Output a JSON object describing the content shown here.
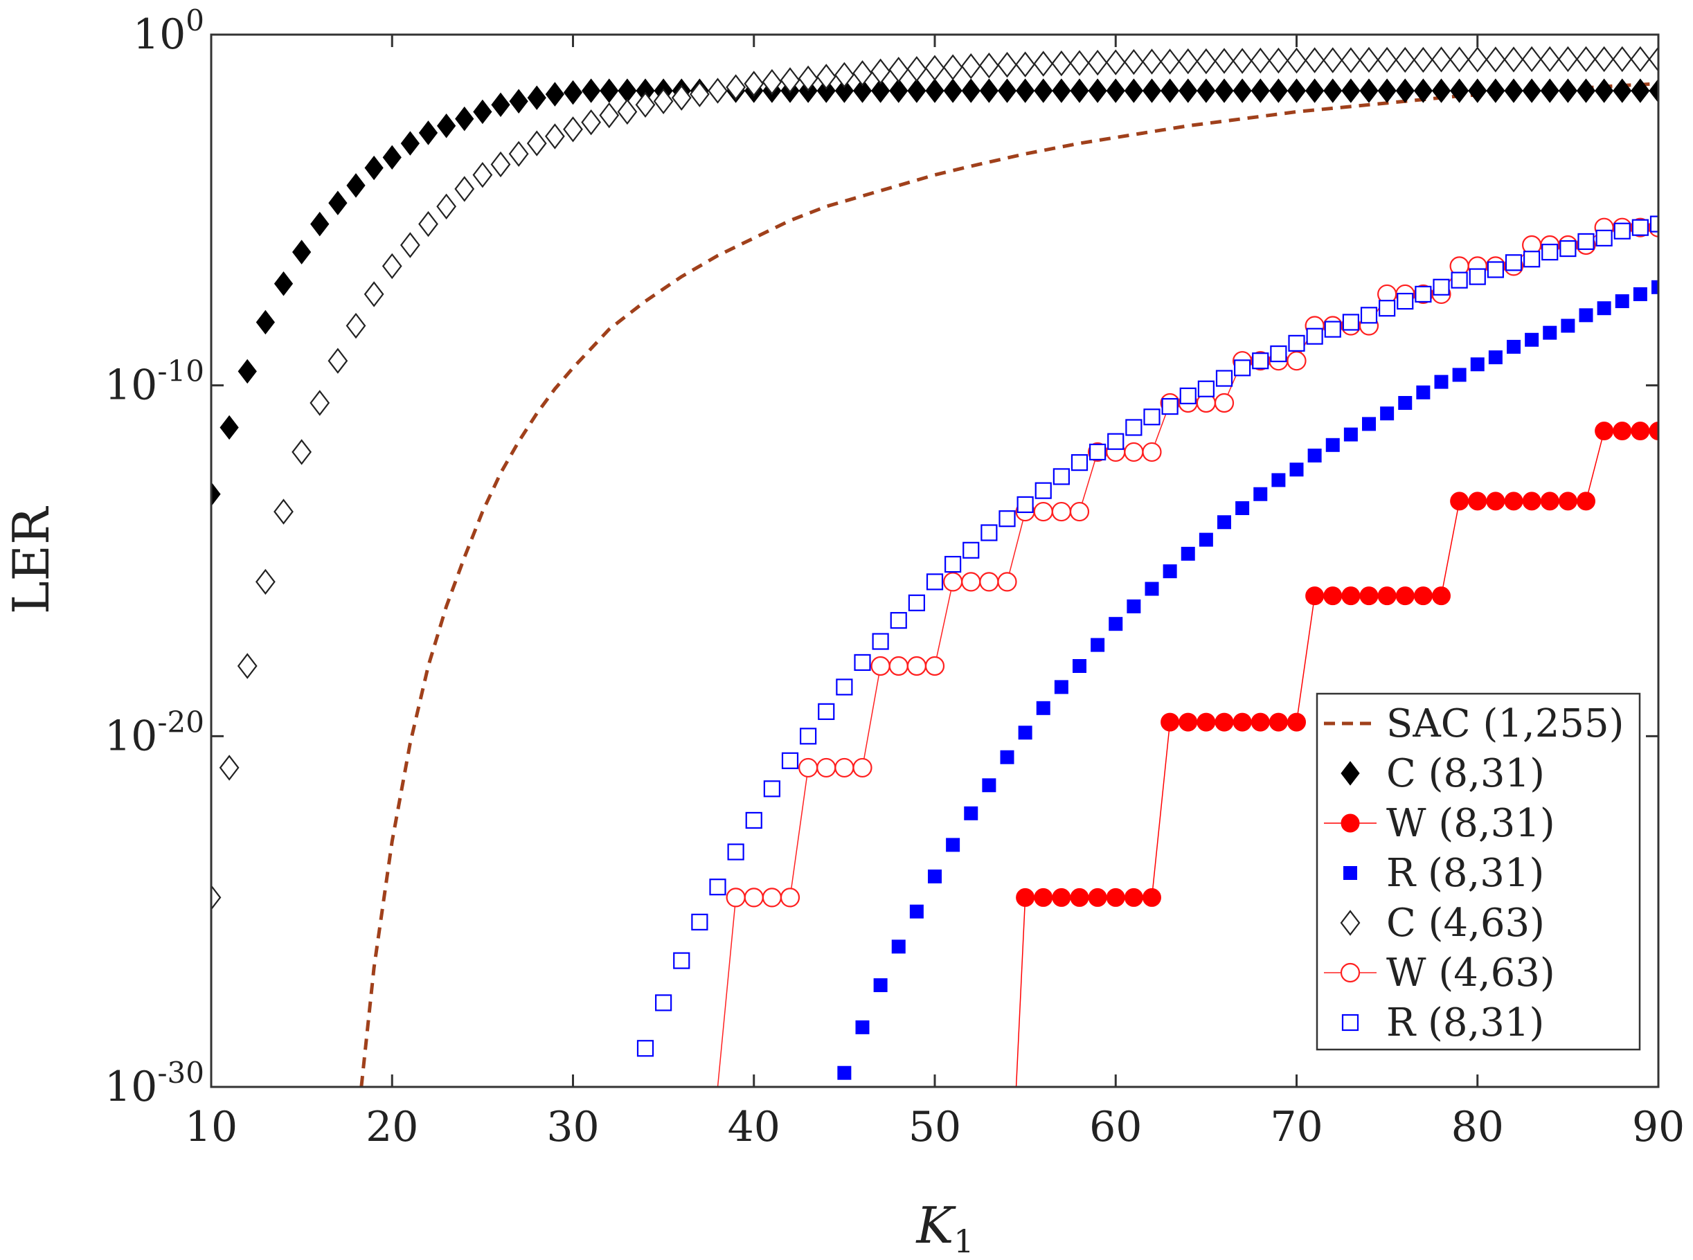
{
  "chart_data": {
    "type": "scatter",
    "title": "",
    "xlabel": "K",
    "xlabel_sub": "1",
    "ylabel": "LER",
    "xlim": [
      10,
      90
    ],
    "ylim_log10": [
      -30,
      0
    ],
    "xticks": [
      "10",
      "20",
      "30",
      "40",
      "50",
      "60",
      "70",
      "80",
      "90"
    ],
    "yticks": [
      {
        "base": "10",
        "exp": "0",
        "value": 0
      },
      {
        "base": "10",
        "exp": "-10",
        "value": -10
      },
      {
        "base": "10",
        "exp": "-20",
        "value": -20
      },
      {
        "base": "10",
        "exp": "-30",
        "value": -30
      }
    ],
    "legend_position": "lower-right",
    "series": [
      {
        "name": "SAC (1,255)",
        "style": "dashed-line",
        "color": "#a0401b",
        "x": [
          18.3,
          19,
          20,
          21,
          22,
          23,
          24,
          25,
          26,
          27,
          28,
          29,
          30,
          32,
          34,
          36,
          38,
          40,
          42,
          44,
          46,
          48,
          50,
          52,
          55,
          58,
          61,
          64,
          67,
          70,
          73,
          76,
          79,
          82,
          85,
          88,
          90
        ],
        "log10_y": [
          -30,
          -26.6,
          -23.0,
          -20.2,
          -18.0,
          -16.3,
          -14.9,
          -13.6,
          -12.5,
          -11.6,
          -10.8,
          -10.1,
          -9.5,
          -8.4,
          -7.6,
          -6.9,
          -6.3,
          -5.8,
          -5.3,
          -4.9,
          -4.6,
          -4.3,
          -4.0,
          -3.75,
          -3.4,
          -3.1,
          -2.85,
          -2.6,
          -2.4,
          -2.2,
          -2.05,
          -1.9,
          -1.75,
          -1.65,
          -1.55,
          -1.45,
          -1.4
        ]
      },
      {
        "name": "C (8,31)",
        "marker": "diamond-filled",
        "color": "#000000",
        "x": [
          10,
          11,
          12,
          13,
          14,
          15,
          16,
          17,
          18,
          19,
          20,
          21,
          22,
          23,
          24,
          25,
          26,
          27,
          28,
          29,
          30,
          31,
          32,
          33,
          34,
          35,
          36,
          37,
          38,
          39,
          40,
          41,
          42,
          43,
          44,
          45,
          46,
          47,
          48,
          49,
          50,
          51,
          52,
          53,
          54,
          55,
          56,
          57,
          58,
          59,
          60,
          61,
          62,
          63,
          64,
          65,
          66,
          67,
          68,
          69,
          70,
          71,
          72,
          73,
          74,
          75,
          76,
          77,
          78,
          79,
          80,
          81,
          82,
          83,
          84,
          85,
          86,
          87,
          88,
          89,
          90
        ],
        "log10_y": [
          -13.1,
          -11.2,
          -9.6,
          -8.2,
          -7.1,
          -6.2,
          -5.4,
          -4.8,
          -4.3,
          -3.8,
          -3.5,
          -3.1,
          -2.8,
          -2.6,
          -2.4,
          -2.2,
          -2.0,
          -1.9,
          -1.8,
          -1.7,
          -1.65,
          -1.6,
          -1.6,
          -1.6,
          -1.6,
          -1.6,
          -1.6,
          -1.6,
          -1.6,
          -1.6,
          -1.6,
          -1.6,
          -1.6,
          -1.6,
          -1.6,
          -1.6,
          -1.6,
          -1.6,
          -1.6,
          -1.6,
          -1.6,
          -1.6,
          -1.6,
          -1.6,
          -1.6,
          -1.6,
          -1.6,
          -1.6,
          -1.6,
          -1.6,
          -1.6,
          -1.6,
          -1.6,
          -1.6,
          -1.6,
          -1.6,
          -1.6,
          -1.6,
          -1.6,
          -1.6,
          -1.6,
          -1.6,
          -1.6,
          -1.6,
          -1.6,
          -1.6,
          -1.6,
          -1.6,
          -1.6,
          -1.6,
          -1.6,
          -1.6,
          -1.6,
          -1.6,
          -1.6,
          -1.6,
          -1.6,
          -1.6,
          -1.6,
          -1.6,
          -1.6
        ]
      },
      {
        "name": "W (8,31)",
        "marker": "circle-filled-line",
        "color": "#ff0000",
        "x": [
          54.5,
          55,
          56,
          57,
          58,
          59,
          60,
          61,
          62,
          63,
          64,
          65,
          66,
          67,
          68,
          69,
          70,
          71,
          72,
          73,
          74,
          75,
          76,
          77,
          78,
          79,
          80,
          81,
          82,
          83,
          84,
          85,
          86,
          87,
          88,
          89,
          90
        ],
        "log10_y": [
          -30,
          -24.6,
          -24.6,
          -24.6,
          -24.6,
          -24.6,
          -24.6,
          -24.6,
          -24.6,
          -19.6,
          -19.6,
          -19.6,
          -19.6,
          -19.6,
          -19.6,
          -19.6,
          -19.6,
          -16.0,
          -16.0,
          -16.0,
          -16.0,
          -16.0,
          -16.0,
          -16.0,
          -16.0,
          -13.3,
          -13.3,
          -13.3,
          -13.3,
          -13.3,
          -13.3,
          -13.3,
          -13.3,
          -11.3,
          -11.3,
          -11.3,
          -11.3
        ]
      },
      {
        "name": "R (8,31)",
        "marker": "square-filled",
        "color": "#0000ff",
        "x": [
          45,
          46,
          47,
          48,
          49,
          50,
          51,
          52,
          53,
          54,
          55,
          56,
          57,
          58,
          59,
          60,
          61,
          62,
          63,
          64,
          65,
          66,
          67,
          68,
          69,
          70,
          71,
          72,
          73,
          74,
          75,
          76,
          77,
          78,
          79,
          80,
          81,
          82,
          83,
          84,
          85,
          86,
          87,
          88,
          89,
          90
        ],
        "log10_y": [
          -29.6,
          -28.3,
          -27.1,
          -26.0,
          -25.0,
          -24.0,
          -23.1,
          -22.2,
          -21.4,
          -20.6,
          -19.9,
          -19.2,
          -18.6,
          -18.0,
          -17.4,
          -16.8,
          -16.3,
          -15.8,
          -15.3,
          -14.8,
          -14.4,
          -13.9,
          -13.5,
          -13.1,
          -12.7,
          -12.4,
          -12.0,
          -11.7,
          -11.4,
          -11.1,
          -10.8,
          -10.5,
          -10.2,
          -9.9,
          -9.7,
          -9.4,
          -9.2,
          -8.9,
          -8.7,
          -8.5,
          -8.3,
          -8.0,
          -7.8,
          -7.6,
          -7.4,
          -7.2
        ]
      },
      {
        "name": "C (4,63)",
        "marker": "diamond-open",
        "color": "#222222",
        "x": [
          10,
          11,
          12,
          13,
          14,
          15,
          16,
          17,
          18,
          19,
          20,
          21,
          22,
          23,
          24,
          25,
          26,
          27,
          28,
          29,
          30,
          31,
          32,
          33,
          34,
          35,
          36,
          37,
          38,
          39,
          40,
          41,
          42,
          43,
          44,
          45,
          46,
          47,
          48,
          49,
          50,
          51,
          52,
          53,
          54,
          55,
          56,
          57,
          58,
          59,
          60,
          61,
          62,
          63,
          64,
          65,
          66,
          67,
          68,
          69,
          70,
          71,
          72,
          73,
          74,
          75,
          76,
          77,
          78,
          79,
          80,
          81,
          82,
          83,
          84,
          85,
          86,
          87,
          88,
          89,
          90
        ],
        "log10_y": [
          -24.6,
          -20.9,
          -18.0,
          -15.6,
          -13.6,
          -11.9,
          -10.5,
          -9.3,
          -8.3,
          -7.4,
          -6.6,
          -6.0,
          -5.4,
          -4.9,
          -4.4,
          -4.0,
          -3.7,
          -3.4,
          -3.1,
          -2.9,
          -2.7,
          -2.5,
          -2.3,
          -2.2,
          -2.0,
          -1.9,
          -1.8,
          -1.7,
          -1.6,
          -1.5,
          -1.4,
          -1.35,
          -1.3,
          -1.25,
          -1.2,
          -1.15,
          -1.1,
          -1.05,
          -1.0,
          -0.98,
          -0.95,
          -0.93,
          -0.9,
          -0.88,
          -0.86,
          -0.85,
          -0.83,
          -0.82,
          -0.81,
          -0.8,
          -0.79,
          -0.78,
          -0.77,
          -0.77,
          -0.76,
          -0.76,
          -0.75,
          -0.75,
          -0.74,
          -0.74,
          -0.74,
          -0.73,
          -0.73,
          -0.73,
          -0.72,
          -0.72,
          -0.72,
          -0.72,
          -0.71,
          -0.71,
          -0.71,
          -0.71,
          -0.71,
          -0.7,
          -0.7,
          -0.7,
          -0.7,
          -0.7,
          -0.7,
          -0.7,
          -0.7
        ]
      },
      {
        "name": "W (4,63)",
        "marker": "circle-open-line",
        "color": "#ff2020",
        "x": [
          38,
          39,
          40,
          41,
          42,
          43,
          44,
          45,
          46,
          47,
          48,
          49,
          50,
          51,
          52,
          53,
          54,
          55,
          56,
          57,
          58,
          59,
          60,
          61,
          62,
          63,
          64,
          65,
          66,
          67,
          68,
          69,
          70,
          71,
          72,
          73,
          74,
          75,
          76,
          77,
          78,
          79,
          80,
          81,
          82,
          83,
          84,
          85,
          86,
          87,
          88,
          89,
          90
        ],
        "log10_y": [
          -30,
          -24.6,
          -24.6,
          -24.6,
          -24.6,
          -20.9,
          -20.9,
          -20.9,
          -20.9,
          -18.0,
          -18.0,
          -18.0,
          -18.0,
          -15.6,
          -15.6,
          -15.6,
          -15.6,
          -13.6,
          -13.6,
          -13.6,
          -13.6,
          -11.9,
          -11.9,
          -11.9,
          -11.9,
          -10.5,
          -10.5,
          -10.5,
          -10.5,
          -9.3,
          -9.3,
          -9.3,
          -9.3,
          -8.3,
          -8.3,
          -8.3,
          -8.3,
          -7.4,
          -7.4,
          -7.4,
          -7.4,
          -6.6,
          -6.6,
          -6.6,
          -6.6,
          -6.0,
          -6.0,
          -6.0,
          -6.0,
          -5.5,
          -5.5,
          -5.5,
          -5.5
        ]
      },
      {
        "name": "R (8,31)",
        "marker": "square-open",
        "color": "#0000ff",
        "x": [
          34,
          35,
          36,
          37,
          38,
          39,
          40,
          41,
          42,
          43,
          44,
          45,
          46,
          47,
          48,
          49,
          50,
          51,
          52,
          53,
          54,
          55,
          56,
          57,
          58,
          59,
          60,
          61,
          62,
          63,
          64,
          65,
          66,
          67,
          68,
          69,
          70,
          71,
          72,
          73,
          74,
          75,
          76,
          77,
          78,
          79,
          80,
          81,
          82,
          83,
          84,
          85,
          86,
          87,
          88,
          89,
          90
        ],
        "log10_y": [
          -28.9,
          -27.6,
          -26.4,
          -25.3,
          -24.3,
          -23.3,
          -22.4,
          -21.5,
          -20.7,
          -20.0,
          -19.3,
          -18.6,
          -17.9,
          -17.3,
          -16.7,
          -16.2,
          -15.6,
          -15.1,
          -14.7,
          -14.2,
          -13.8,
          -13.4,
          -13.0,
          -12.6,
          -12.2,
          -11.9,
          -11.6,
          -11.2,
          -10.9,
          -10.6,
          -10.3,
          -10.1,
          -9.8,
          -9.5,
          -9.3,
          -9.1,
          -8.8,
          -8.6,
          -8.4,
          -8.2,
          -8.0,
          -7.8,
          -7.6,
          -7.4,
          -7.2,
          -7.0,
          -6.9,
          -6.7,
          -6.5,
          -6.4,
          -6.2,
          -6.1,
          -5.9,
          -5.8,
          -5.6,
          -5.5,
          -5.4
        ]
      }
    ]
  }
}
